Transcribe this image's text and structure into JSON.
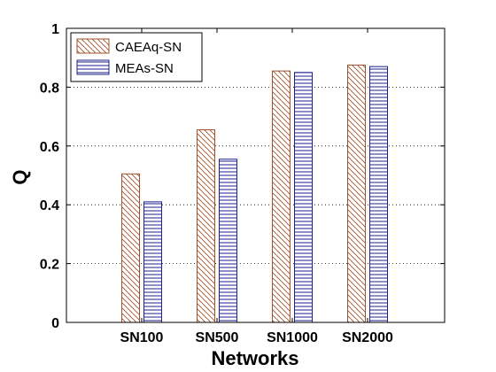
{
  "chart_data": {
    "type": "bar",
    "categories": [
      "SN100",
      "SN500",
      "SN1000",
      "SN2000"
    ],
    "series": [
      {
        "name": "CAEAq-SN",
        "values": [
          0.505,
          0.655,
          0.855,
          0.875
        ],
        "color": "#a0522d",
        "pattern": "diagonal"
      },
      {
        "name": "MEAs-SN",
        "values": [
          0.41,
          0.555,
          0.85,
          0.87
        ],
        "color": "#1f1f8f",
        "pattern": "horizontal"
      }
    ],
    "title": "",
    "xlabel": "Networks",
    "ylabel": "Q",
    "ylim": [
      0,
      1
    ],
    "yticks": [
      "0",
      "0.2",
      "0.4",
      "0.6",
      "0.8",
      "1"
    ],
    "grid": "y-dotted",
    "legend_position": "top-left"
  }
}
